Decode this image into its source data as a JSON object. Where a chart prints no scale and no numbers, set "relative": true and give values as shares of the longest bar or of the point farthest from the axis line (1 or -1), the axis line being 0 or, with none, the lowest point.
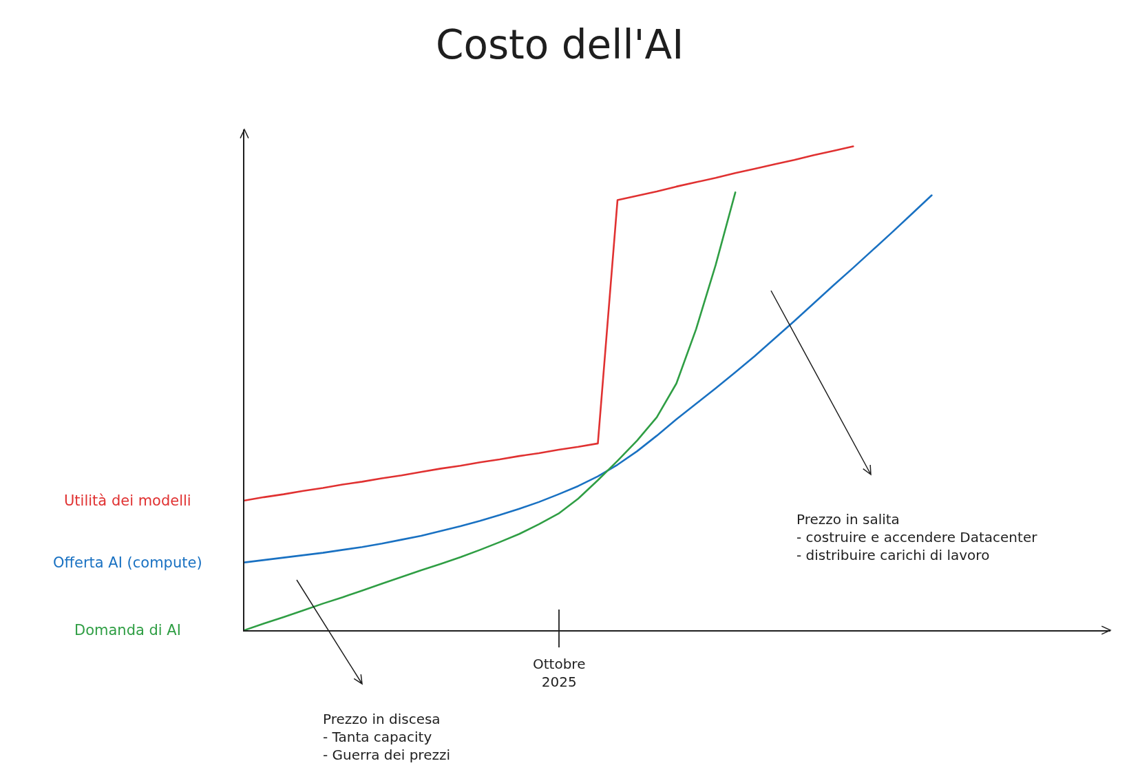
{
  "chart_data": {
    "type": "line",
    "title": "Costo dell'AI",
    "relative": true,
    "categories": [
      null,
      null,
      null,
      null,
      null,
      null,
      null,
      null,
      null,
      null,
      null,
      null,
      null,
      null,
      null,
      null,
      null,
      null,
      null,
      null,
      null,
      null,
      null,
      null,
      null,
      null,
      null,
      null,
      null,
      null,
      null,
      null,
      null,
      null,
      null,
      null
    ],
    "series": [
      {
        "name": "Utilità dei modelli",
        "color": "#e03131",
        "values": [
          0.268,
          0.275,
          0.281,
          0.288,
          0.294,
          0.301,
          0.307,
          0.314,
          0.32,
          0.327,
          0.334,
          0.34,
          0.347,
          0.353,
          0.36,
          0.366,
          0.373,
          0.379,
          0.386,
          0.889,
          0.898,
          0.907,
          0.917,
          0.926,
          0.935,
          0.945,
          0.954,
          0.963,
          0.972,
          0.982,
          0.991,
          1.0,
          null,
          null,
          null,
          null
        ]
      },
      {
        "name": "Offerta AI (compute)",
        "color": "#1971c2",
        "values": [
          0.14,
          0.145,
          0.15,
          0.155,
          0.16,
          0.166,
          0.172,
          0.179,
          0.187,
          0.195,
          0.205,
          0.215,
          0.226,
          0.238,
          0.251,
          0.265,
          0.281,
          0.298,
          0.318,
          0.342,
          0.37,
          0.402,
          0.436,
          0.468,
          0.5,
          0.533,
          0.567,
          0.603,
          0.639,
          0.676,
          0.713,
          0.749,
          0.786,
          0.823,
          0.861,
          0.899
        ]
      },
      {
        "name": "Domanda di AI",
        "color": "#2f9e44",
        "values": [
          0,
          0.014,
          0.027,
          0.041,
          0.055,
          0.068,
          0.082,
          0.096,
          0.11,
          0.124,
          0.137,
          0.151,
          0.166,
          0.182,
          0.199,
          0.219,
          0.241,
          0.272,
          0.31,
          0.35,
          0.392,
          0.44,
          0.51,
          0.622,
          0.755,
          0.905,
          null,
          null,
          null,
          null,
          null,
          null,
          null,
          null,
          null,
          null
        ]
      }
    ],
    "annotations": [
      "Prezzo in salita\n- costruire e accendere Datacenter\n- distribuire carichi di lavoro",
      "Ottobre\n2025",
      "Prezzo in discesa\n- Tanta capacity\n- Guerra dei prezzi"
    ]
  }
}
